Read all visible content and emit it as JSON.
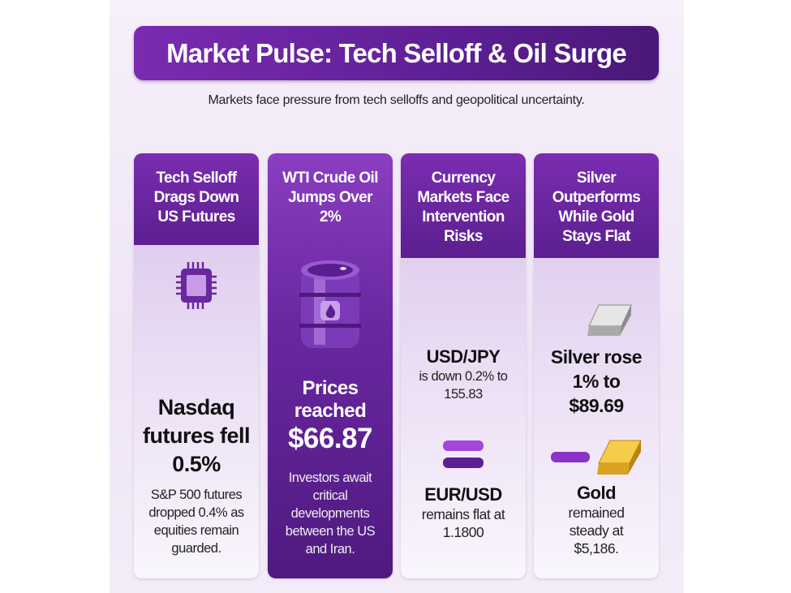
{
  "title": "Market Pulse: Tech Selloff & Oil Surge",
  "subtitle": "Markets face pressure from tech selloffs and geopolitical uncertainty.",
  "colors": {
    "primary_purple": "#6a27a0",
    "dark_purple": "#4a1878",
    "light_lavender": "#efe4f6",
    "gold": "#e8b830",
    "silver": "#c8c8c8"
  },
  "cards": [
    {
      "heading": "Tech Selloff Drags Down US Futures",
      "icon": "microchip-icon",
      "headline": "Nasdaq futures fell 0.5%",
      "detail": "S&P 500 futures dropped 0.4% as equities remain guarded."
    },
    {
      "heading": "WTI Crude Oil Jumps Over 2%",
      "icon": "oil-barrel-icon",
      "headline": "Prices reached",
      "value": "$66.87",
      "detail": "Investors await critical developments between the US and Iran."
    },
    {
      "heading": "Currency Markets Face Intervention Risks",
      "pair1": "USD/JPY",
      "pair1_detail": "is down 0.2% to 155.83",
      "icon": "equals-icon",
      "pair2": "EUR/USD",
      "pair2_detail": "remains flat at 1.1800"
    },
    {
      "heading": "Silver Outperforms While Gold Stays Flat",
      "silver_icon": "silver-bar-icon",
      "silver_text": "Silver rose 1% to $89.69",
      "gold_icon": "gold-bar-icon",
      "flat_icon": "dash-icon",
      "gold_label": "Gold",
      "gold_text": "remained steady at $5,186."
    }
  ]
}
